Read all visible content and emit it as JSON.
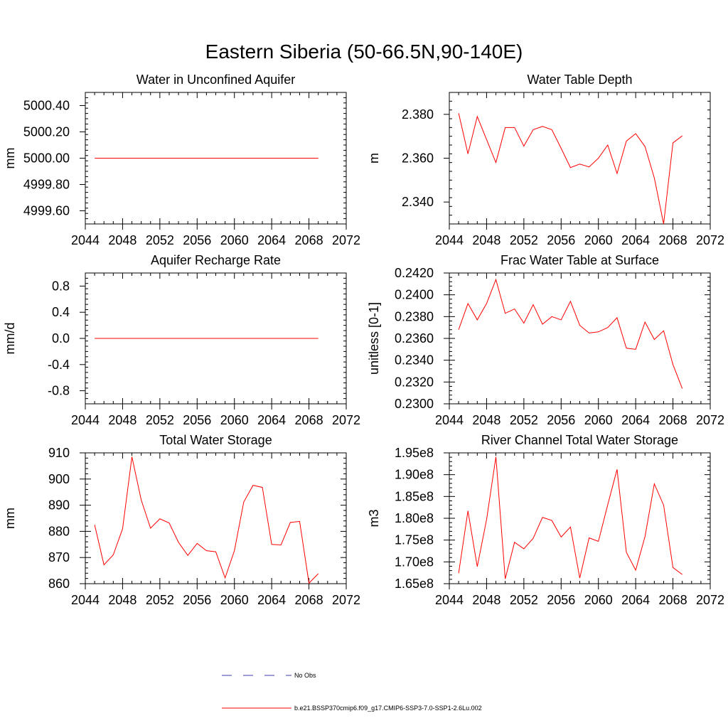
{
  "page": {
    "title": "Eastern Siberia (50-66.5N,90-140E)"
  },
  "colors": {
    "series": "#ff0000",
    "obs": "#3b3bb0"
  },
  "legend": {
    "obs_label": "No Obs",
    "model_label": "b.e21.BSSP370cmip6.f09_g17.CMIP6-SSP3-7.0-SSP1-2.6Lu.002"
  },
  "chart_data": [
    {
      "type": "line",
      "title": "Water in Unconfined Aquifer",
      "ylabel": "mm",
      "xlim": [
        2044,
        2072
      ],
      "ylim": [
        4999.5,
        5000.5
      ],
      "xticks": [
        "2044",
        "2048",
        "2052",
        "2056",
        "2060",
        "2064",
        "2068",
        "2072"
      ],
      "yticks": [
        {
          "v": 4999.6,
          "label": "4999.60"
        },
        {
          "v": 4999.8,
          "label": "4999.80"
        },
        {
          "v": 5000.0,
          "label": "5000.00"
        },
        {
          "v": 5000.2,
          "label": "5000.20"
        },
        {
          "v": 5000.4,
          "label": "5000.40"
        }
      ],
      "x": [
        2045,
        2046,
        2047,
        2048,
        2049,
        2050,
        2051,
        2052,
        2053,
        2054,
        2055,
        2056,
        2057,
        2058,
        2059,
        2060,
        2061,
        2062,
        2063,
        2064,
        2065,
        2066,
        2067,
        2068,
        2069
      ],
      "series": [
        {
          "values": [
            5000,
            5000,
            5000,
            5000,
            5000,
            5000,
            5000,
            5000,
            5000,
            5000,
            5000,
            5000,
            5000,
            5000,
            5000,
            5000,
            5000,
            5000,
            5000,
            5000,
            5000,
            5000,
            5000,
            5000,
            5000
          ]
        }
      ]
    },
    {
      "type": "line",
      "title": "Water Table Depth",
      "ylabel": "m",
      "xlim": [
        2044,
        2072
      ],
      "ylim": [
        2.33,
        2.39
      ],
      "xticks": [
        "2044",
        "2048",
        "2052",
        "2056",
        "2060",
        "2064",
        "2068",
        "2072"
      ],
      "yticks": [
        {
          "v": 2.34,
          "label": "2.340"
        },
        {
          "v": 2.36,
          "label": "2.360"
        },
        {
          "v": 2.38,
          "label": "2.380"
        }
      ],
      "x": [
        2045,
        2046,
        2047,
        2048,
        2049,
        2050,
        2051,
        2052,
        2053,
        2054,
        2055,
        2056,
        2057,
        2058,
        2059,
        2060,
        2061,
        2062,
        2063,
        2064,
        2065,
        2066,
        2067,
        2068,
        2069
      ],
      "series": [
        {
          "values": [
            2.3805,
            2.362,
            2.379,
            2.3685,
            2.358,
            2.374,
            2.374,
            2.3655,
            2.373,
            2.3745,
            2.373,
            2.3645,
            2.3557,
            2.3573,
            2.356,
            2.36,
            2.366,
            2.353,
            2.3678,
            2.3712,
            2.3653,
            2.351,
            2.33,
            2.367,
            2.3702
          ]
        }
      ]
    },
    {
      "type": "line",
      "title": "Aquifer Recharge Rate",
      "ylabel": "mm/d",
      "xlim": [
        2044,
        2072
      ],
      "ylim": [
        -1.0,
        1.0
      ],
      "xticks": [
        "2044",
        "2048",
        "2052",
        "2056",
        "2060",
        "2064",
        "2068",
        "2072"
      ],
      "yticks": [
        {
          "v": -0.8,
          "label": "-0.8"
        },
        {
          "v": -0.4,
          "label": "-0.4"
        },
        {
          "v": 0.0,
          "label": "0.0"
        },
        {
          "v": 0.4,
          "label": "0.4"
        },
        {
          "v": 0.8,
          "label": "0.8"
        }
      ],
      "x": [
        2045,
        2046,
        2047,
        2048,
        2049,
        2050,
        2051,
        2052,
        2053,
        2054,
        2055,
        2056,
        2057,
        2058,
        2059,
        2060,
        2061,
        2062,
        2063,
        2064,
        2065,
        2066,
        2067,
        2068,
        2069
      ],
      "series": [
        {
          "values": [
            0,
            0,
            0,
            0,
            0,
            0,
            0,
            0,
            0,
            0,
            0,
            0,
            0,
            0,
            0,
            0,
            0,
            0,
            0,
            0,
            0,
            0,
            0,
            0,
            0
          ]
        }
      ]
    },
    {
      "type": "line",
      "title": "Frac Water Table at Surface",
      "ylabel": "unitless [0-1]",
      "xlim": [
        2044,
        2072
      ],
      "ylim": [
        0.23,
        0.242
      ],
      "xticks": [
        "2044",
        "2048",
        "2052",
        "2056",
        "2060",
        "2064",
        "2068",
        "2072"
      ],
      "yticks": [
        {
          "v": 0.23,
          "label": "0.2300"
        },
        {
          "v": 0.232,
          "label": "0.2320"
        },
        {
          "v": 0.234,
          "label": "0.2340"
        },
        {
          "v": 0.236,
          "label": "0.2360"
        },
        {
          "v": 0.238,
          "label": "0.2380"
        },
        {
          "v": 0.24,
          "label": "0.2400"
        },
        {
          "v": 0.242,
          "label": "0.2420"
        }
      ],
      "x": [
        2045,
        2046,
        2047,
        2048,
        2049,
        2050,
        2051,
        2052,
        2053,
        2054,
        2055,
        2056,
        2057,
        2058,
        2059,
        2060,
        2061,
        2062,
        2063,
        2064,
        2065,
        2066,
        2067,
        2068,
        2069
      ],
      "series": [
        {
          "values": [
            0.2368,
            0.2392,
            0.2377,
            0.2392,
            0.2414,
            0.2383,
            0.2387,
            0.2374,
            0.2391,
            0.2373,
            0.238,
            0.2377,
            0.2394,
            0.2372,
            0.2365,
            0.2366,
            0.237,
            0.2379,
            0.2351,
            0.235,
            0.2375,
            0.2359,
            0.2367,
            0.2336,
            0.2314
          ]
        }
      ]
    },
    {
      "type": "line",
      "title": "Total Water Storage",
      "ylabel": "mm",
      "xlim": [
        2044,
        2072
      ],
      "ylim": [
        860,
        910
      ],
      "xticks": [
        "2044",
        "2048",
        "2052",
        "2056",
        "2060",
        "2064",
        "2068",
        "2072"
      ],
      "yticks": [
        {
          "v": 860,
          "label": "860"
        },
        {
          "v": 870,
          "label": "870"
        },
        {
          "v": 880,
          "label": "880"
        },
        {
          "v": 890,
          "label": "890"
        },
        {
          "v": 900,
          "label": "900"
        },
        {
          "v": 910,
          "label": "910"
        }
      ],
      "x": [
        2045,
        2046,
        2047,
        2048,
        2049,
        2050,
        2051,
        2052,
        2053,
        2054,
        2055,
        2056,
        2057,
        2058,
        2059,
        2060,
        2061,
        2062,
        2063,
        2064,
        2065,
        2066,
        2067,
        2068,
        2069
      ],
      "series": [
        {
          "values": [
            882.5,
            867.2,
            871.0,
            881.0,
            908.5,
            892.0,
            881.2,
            884.8,
            883.2,
            875.8,
            870.8,
            875.4,
            872.6,
            872.2,
            862.2,
            872.6,
            891.2,
            897.6,
            896.8,
            875.0,
            874.8,
            883.4,
            883.8,
            860.2,
            863.8
          ]
        }
      ]
    },
    {
      "type": "line",
      "title": "River Channel Total Water Storage",
      "ylabel": "m3",
      "xlim": [
        2044,
        2072
      ],
      "ylim": [
        1.65,
        1.95
      ],
      "yunit": "e8",
      "xticks": [
        "2044",
        "2048",
        "2052",
        "2056",
        "2060",
        "2064",
        "2068",
        "2072"
      ],
      "yticks": [
        {
          "v": 1.65,
          "label": "1.65e8"
        },
        {
          "v": 1.7,
          "label": "1.70e8"
        },
        {
          "v": 1.75,
          "label": "1.75e8"
        },
        {
          "v": 1.8,
          "label": "1.80e8"
        },
        {
          "v": 1.85,
          "label": "1.85e8"
        },
        {
          "v": 1.9,
          "label": "1.90e8"
        },
        {
          "v": 1.95,
          "label": "1.95e8"
        }
      ],
      "x": [
        2045,
        2046,
        2047,
        2048,
        2049,
        2050,
        2051,
        2052,
        2053,
        2054,
        2055,
        2056,
        2057,
        2058,
        2059,
        2060,
        2061,
        2062,
        2063,
        2064,
        2065,
        2066,
        2067,
        2068,
        2069
      ],
      "series": [
        {
          "values": [
            1.674,
            1.817,
            1.689,
            1.797,
            1.941,
            1.661,
            1.745,
            1.73,
            1.754,
            1.802,
            1.795,
            1.757,
            1.78,
            1.663,
            1.755,
            1.747,
            1.831,
            1.912,
            1.722,
            1.681,
            1.758,
            1.879,
            1.83,
            1.687,
            1.671
          ]
        }
      ]
    }
  ]
}
